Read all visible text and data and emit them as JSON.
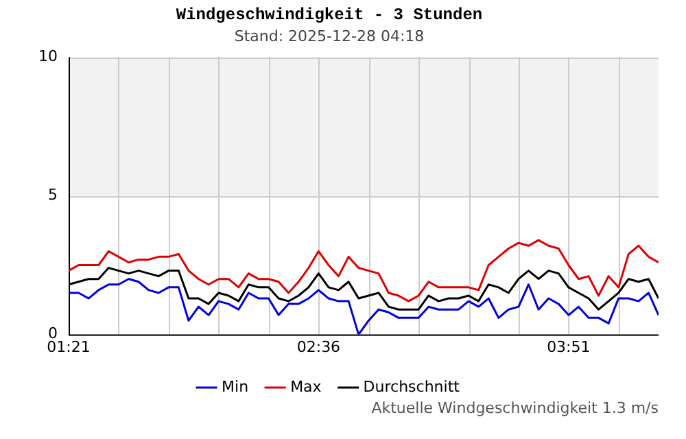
{
  "chart_data": {
    "type": "line",
    "title": "Windgeschwindigkeit - 3 Stunden",
    "subtitle": "Stand: 2025-12-28 04:18",
    "x": [
      1.35,
      1.4,
      1.45,
      1.5,
      1.55,
      1.6,
      1.65,
      1.7,
      1.75,
      1.8,
      1.85,
      1.9,
      1.95,
      2.0,
      2.05,
      2.1,
      2.15,
      2.2,
      2.25,
      2.3,
      2.35,
      2.4,
      2.45,
      2.5,
      2.55,
      2.6,
      2.65,
      2.7,
      2.75,
      2.8,
      2.85,
      2.9,
      2.95,
      3.0,
      3.05,
      3.1,
      3.15,
      3.2,
      3.25,
      3.3,
      3.35,
      3.4,
      3.45,
      3.5,
      3.55,
      3.6,
      3.65,
      3.7,
      3.75,
      3.8,
      3.85,
      3.9,
      3.95,
      4.0,
      4.05,
      4.1,
      4.15,
      4.2,
      4.25,
      4.3
    ],
    "series": [
      {
        "name": "Min",
        "color": "#0000e0",
        "values": [
          1.5,
          1.5,
          1.3,
          1.6,
          1.8,
          1.8,
          2.0,
          1.9,
          1.6,
          1.5,
          1.7,
          1.7,
          0.5,
          1.0,
          0.7,
          1.2,
          1.1,
          0.9,
          1.5,
          1.3,
          1.3,
          0.7,
          1.1,
          1.1,
          1.3,
          1.6,
          1.3,
          1.2,
          1.2,
          0.0,
          0.5,
          0.9,
          0.8,
          0.6,
          0.6,
          0.6,
          1.0,
          0.9,
          0.9,
          0.9,
          1.2,
          1.0,
          1.3,
          0.6,
          0.9,
          1.0,
          1.8,
          0.9,
          1.3,
          1.1,
          0.7,
          1.0,
          0.6,
          0.6,
          0.4,
          1.3,
          1.3,
          1.2,
          1.5,
          0.7
        ]
      },
      {
        "name": "Max",
        "color": "#e00000",
        "values": [
          2.3,
          2.5,
          2.5,
          2.5,
          3.0,
          2.8,
          2.6,
          2.7,
          2.7,
          2.8,
          2.8,
          2.9,
          2.3,
          2.0,
          1.8,
          2.0,
          2.0,
          1.7,
          2.2,
          2.0,
          2.0,
          1.9,
          1.5,
          1.9,
          2.4,
          3.0,
          2.5,
          2.1,
          2.8,
          2.4,
          2.3,
          2.2,
          1.5,
          1.4,
          1.2,
          1.4,
          1.9,
          1.7,
          1.7,
          1.7,
          1.7,
          1.6,
          2.5,
          2.8,
          3.1,
          3.3,
          3.2,
          3.4,
          3.2,
          3.1,
          2.5,
          2.0,
          2.1,
          1.4,
          2.1,
          1.7,
          2.9,
          3.2,
          2.8,
          2.6
        ]
      },
      {
        "name": "Durchschnitt",
        "color": "#000000",
        "values": [
          1.8,
          1.9,
          2.0,
          2.0,
          2.4,
          2.3,
          2.2,
          2.3,
          2.2,
          2.1,
          2.3,
          2.3,
          1.3,
          1.3,
          1.1,
          1.5,
          1.4,
          1.2,
          1.8,
          1.7,
          1.7,
          1.3,
          1.2,
          1.4,
          1.7,
          2.2,
          1.7,
          1.6,
          1.9,
          1.3,
          1.4,
          1.5,
          1.0,
          0.9,
          0.9,
          0.9,
          1.4,
          1.2,
          1.3,
          1.3,
          1.4,
          1.2,
          1.8,
          1.7,
          1.5,
          2.0,
          2.3,
          2.0,
          2.3,
          2.2,
          1.7,
          1.5,
          1.3,
          0.9,
          1.2,
          1.5,
          2.0,
          1.9,
          2.0,
          1.3
        ]
      }
    ],
    "xlim": [
      1.35,
      4.3
    ],
    "xticks": [
      {
        "value": 1.35,
        "label": "01:21"
      },
      {
        "value": 1.6,
        "label": null
      },
      {
        "value": 1.85,
        "label": null
      },
      {
        "value": 2.1,
        "label": null
      },
      {
        "value": 2.35,
        "label": null
      },
      {
        "value": 2.6,
        "label": "02:36"
      },
      {
        "value": 2.85,
        "label": null
      },
      {
        "value": 3.1,
        "label": null
      },
      {
        "value": 3.35,
        "label": null
      },
      {
        "value": 3.6,
        "label": null
      },
      {
        "value": 3.85,
        "label": "03:51"
      },
      {
        "value": 4.1,
        "label": null
      }
    ],
    "ylim": [
      0,
      10
    ],
    "yticks": [
      0,
      5,
      10
    ],
    "bands": [
      {
        "axis": "y",
        "from": 5,
        "to": 10,
        "color": "#f2f2f2"
      }
    ],
    "grid": true,
    "legend": "bottom",
    "marker": "none",
    "line_style": "solid",
    "annotations": [
      "Aktuelle Windgeschwindigkeit 1.3 m/s"
    ]
  }
}
